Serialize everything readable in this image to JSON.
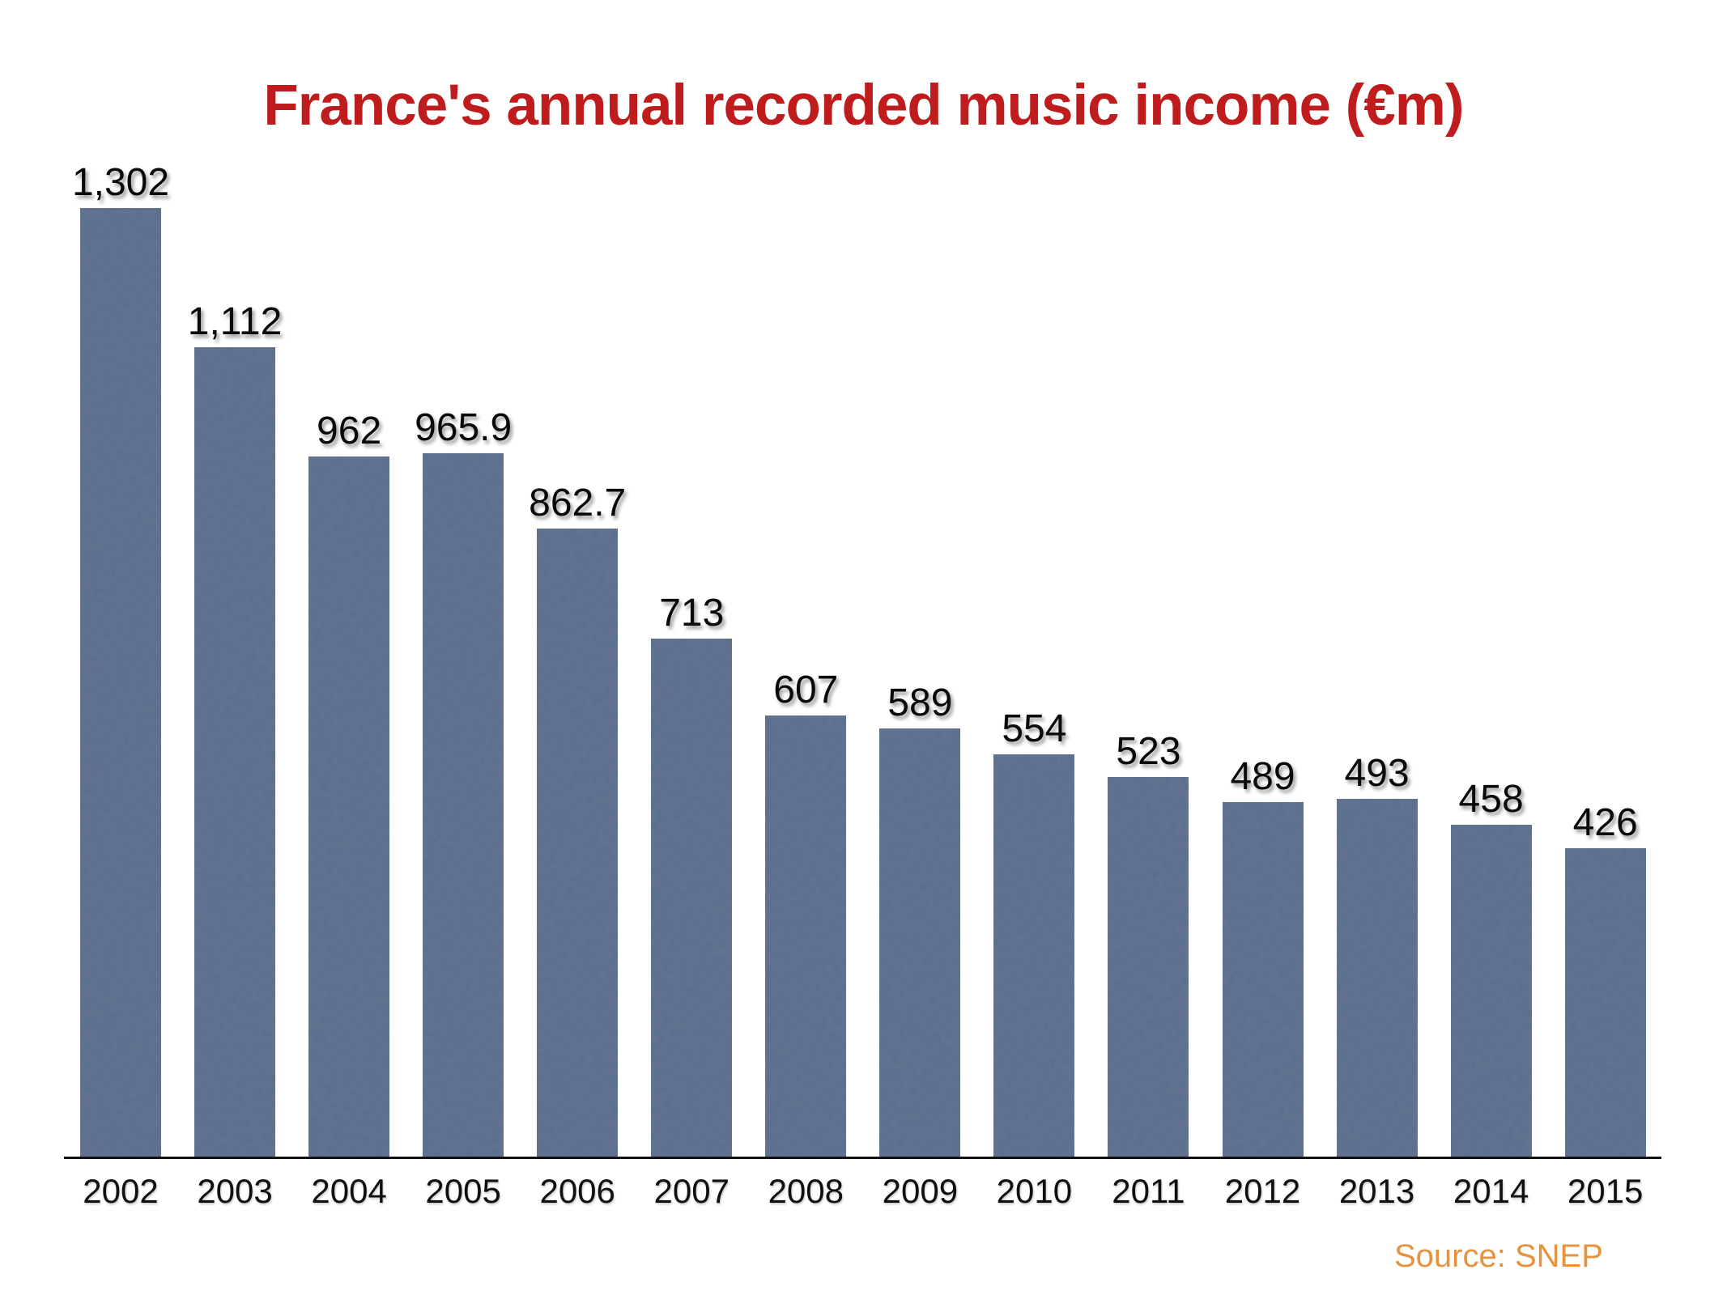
{
  "chart_data": {
    "type": "bar",
    "title": "France's annual recorded music income (€m)",
    "categories": [
      "2002",
      "2003",
      "2004",
      "2005",
      "2006",
      "2007",
      "2008",
      "2009",
      "2010",
      "2011",
      "2012",
      "2013",
      "2014",
      "2015"
    ],
    "values": [
      1302,
      1112,
      962,
      965.9,
      862.7,
      713,
      607,
      589,
      554,
      523,
      489,
      493,
      458,
      426
    ],
    "value_labels": [
      "1,302",
      "1,112",
      "962",
      "965.9",
      "862.7",
      "713",
      "607",
      "589",
      "554",
      "523",
      "489",
      "493",
      "458",
      "426"
    ],
    "xlabel": "",
    "ylabel": "",
    "ylim": [
      0,
      1400
    ],
    "grid": false,
    "legend": false,
    "source": "Source: SNEP"
  },
  "colors": {
    "title": "#bf1c1e",
    "source": "#e6923e",
    "bar_base": "#5b6e8e",
    "bar_noise_dark": "#212e47",
    "axis": "#111111",
    "label": "#0a0a0a",
    "background": "#ffffff"
  }
}
